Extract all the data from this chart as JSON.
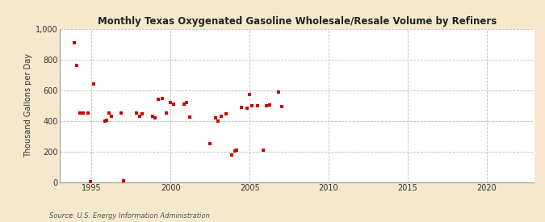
{
  "title": "Monthly Texas Oxygenated Gasoline Wholesale/Resale Volume by Refiners",
  "ylabel": "Thousand Gallons per Day",
  "source": "Source: U.S. Energy Information Administration",
  "background_color": "#f5e8cc",
  "plot_background_color": "#ffffff",
  "marker_color": "#cc0000",
  "marker_size": 3.5,
  "xlim": [
    1993.0,
    2023.0
  ],
  "ylim": [
    0,
    1000
  ],
  "yticks": [
    0,
    200,
    400,
    600,
    800,
    1000
  ],
  "xticks": [
    1995,
    2000,
    2005,
    2010,
    2015,
    2020
  ],
  "data_x": [
    1993.9,
    1994.05,
    1994.25,
    1994.45,
    1994.75,
    1994.95,
    1995.15,
    1995.85,
    1995.95,
    1996.1,
    1996.25,
    1996.85,
    1997.0,
    1997.85,
    1998.05,
    1998.2,
    1998.85,
    1999.0,
    1999.2,
    1999.45,
    1999.75,
    2000.0,
    2000.2,
    2000.85,
    2001.0,
    2001.2,
    2002.5,
    2002.85,
    2003.0,
    2003.2,
    2003.5,
    2003.85,
    2004.05,
    2004.2,
    2004.5,
    2004.85,
    2005.0,
    2005.15,
    2005.5,
    2005.85,
    2006.05,
    2006.25,
    2006.85,
    2007.05
  ],
  "data_y": [
    910,
    760,
    450,
    450,
    450,
    5,
    640,
    400,
    405,
    450,
    430,
    450,
    10,
    450,
    430,
    445,
    430,
    420,
    540,
    545,
    450,
    520,
    510,
    510,
    520,
    425,
    250,
    420,
    400,
    430,
    445,
    175,
    205,
    210,
    490,
    480,
    570,
    500,
    500,
    210,
    500,
    505,
    590,
    495
  ]
}
